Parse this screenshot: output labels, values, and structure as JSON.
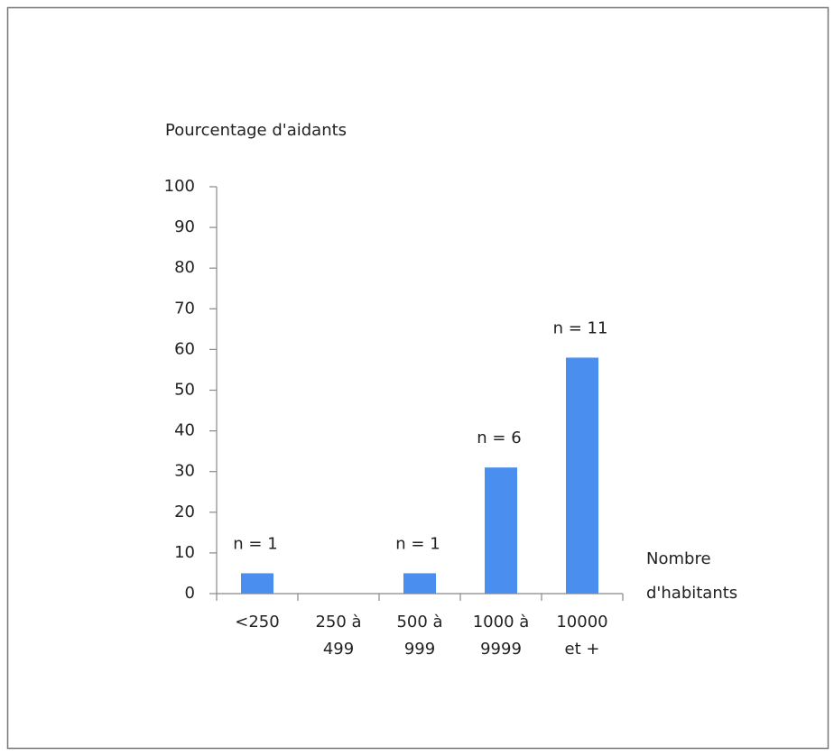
{
  "chart_data": {
    "type": "bar",
    "y_axis_title": "Pourcentage d'aidants",
    "x_axis_title": [
      "Nombre",
      "d'habitants"
    ],
    "categories": [
      [
        "<250"
      ],
      [
        "250 à",
        "499"
      ],
      [
        "500 à",
        "999"
      ],
      [
        "1000 à",
        "9999"
      ],
      [
        "10000",
        "et +"
      ]
    ],
    "values": [
      5,
      0,
      5,
      31,
      58
    ],
    "bar_annotations": [
      "n = 1",
      null,
      "n = 1",
      "n = 6",
      "n = 11"
    ],
    "color": "#4a8ef0",
    "ylim": [
      0,
      100
    ],
    "yticks": [
      0,
      10,
      20,
      30,
      40,
      50,
      60,
      70,
      80,
      90,
      100
    ],
    "grid": false
  }
}
